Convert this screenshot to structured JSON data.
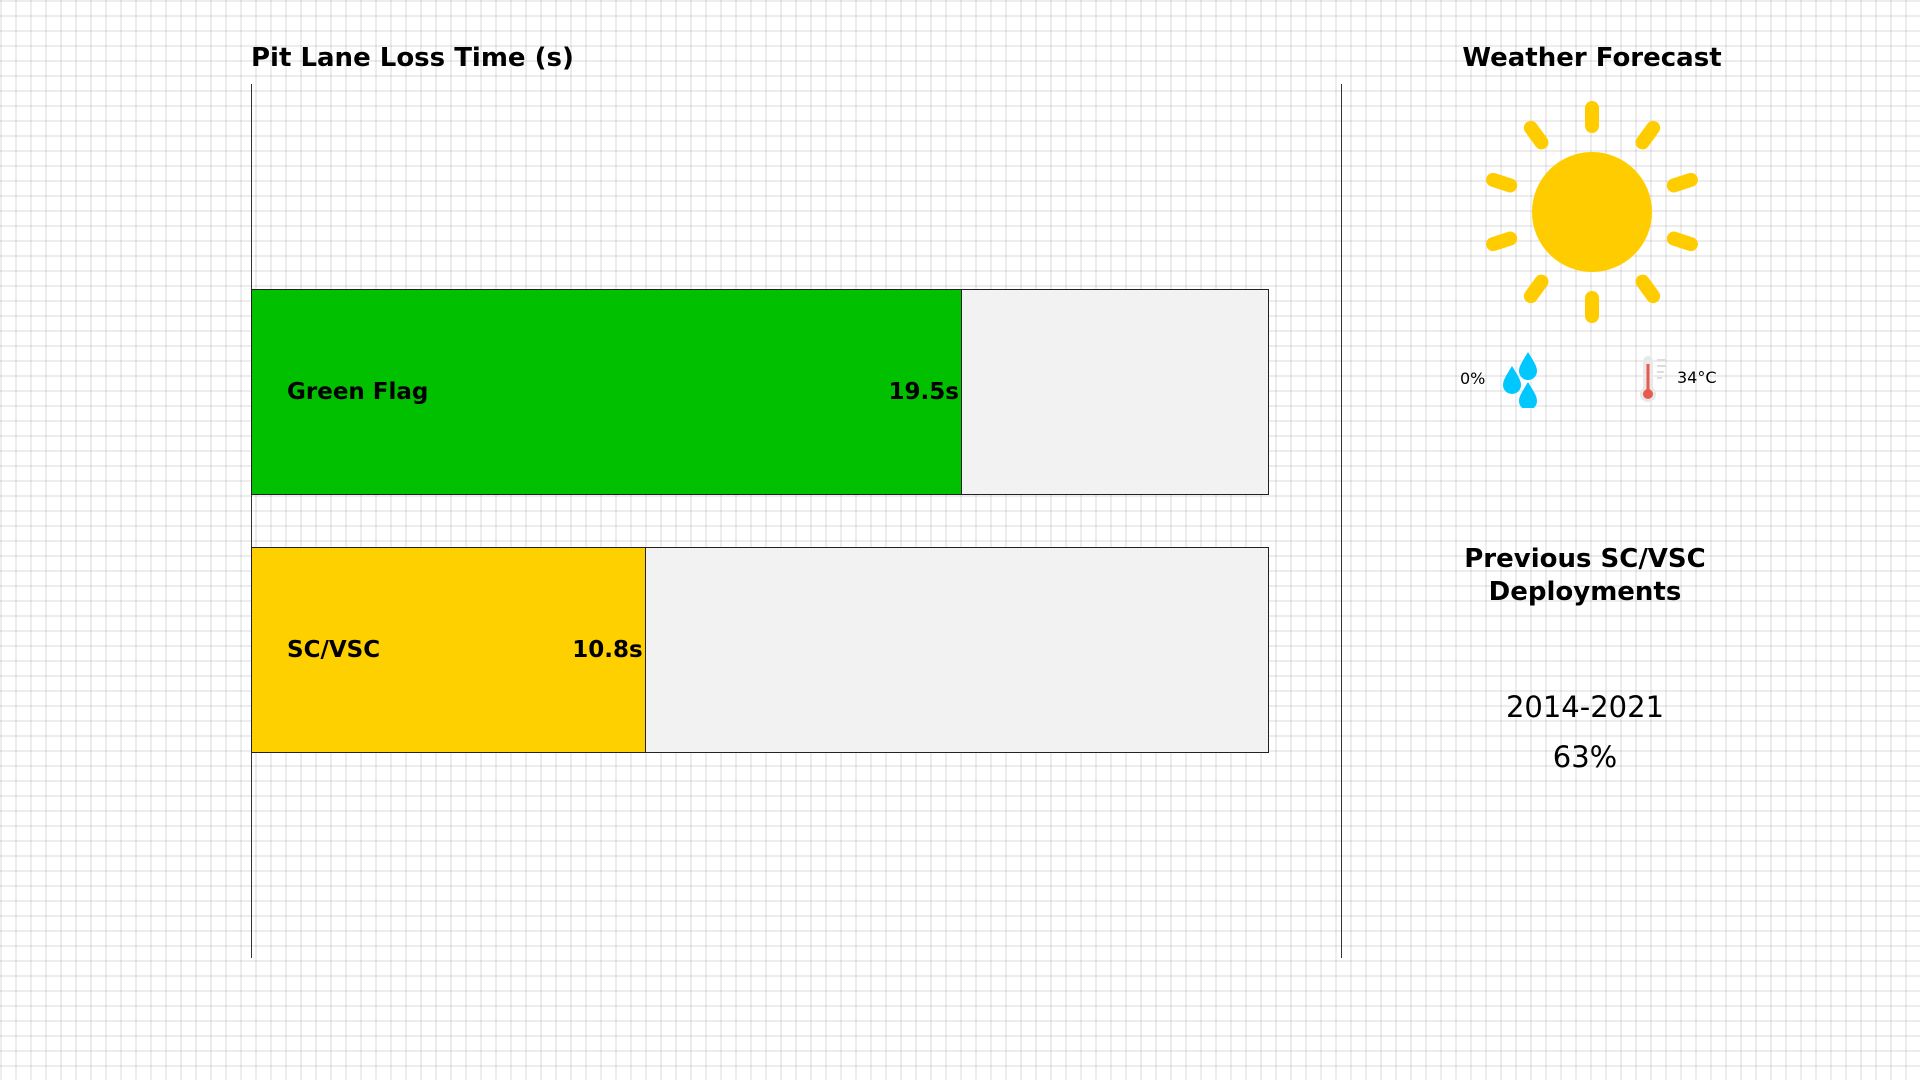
{
  "chart_data": {
    "type": "bar",
    "orientation": "horizontal",
    "title": "Pit Lane Loss Time (s)",
    "categories": [
      "Green Flag",
      "SC/VSC"
    ],
    "values": [
      19.5,
      10.8
    ],
    "value_labels": [
      "19.5s",
      "10.8s"
    ],
    "colors": [
      "#00c000",
      "#ffd000"
    ],
    "xlim": [
      0,
      28
    ],
    "grid": false
  },
  "weather": {
    "title": "Weather Forecast",
    "icon": "sun-icon",
    "rain_chance": "0%",
    "temperature": "34°C",
    "sun_color": "#ffcc00",
    "rain_color": "#00c8ff"
  },
  "deployments": {
    "title_line1": "Previous SC/VSC",
    "title_line2": "Deployments",
    "period": "2014-2021",
    "percentage": "63%"
  }
}
